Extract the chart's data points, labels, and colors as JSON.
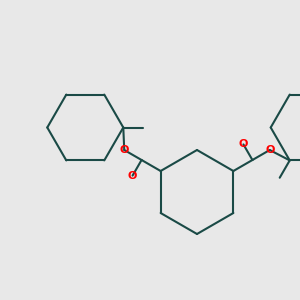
{
  "bg_color": "#e8e8e8",
  "ring_color": "#1a4a46",
  "oxygen_color": "#ff0000",
  "line_width": 1.5,
  "fig_size": [
    3.0,
    3.0
  ],
  "dpi": 100,
  "xlim": [
    0,
    300
  ],
  "ylim": [
    0,
    300
  ]
}
